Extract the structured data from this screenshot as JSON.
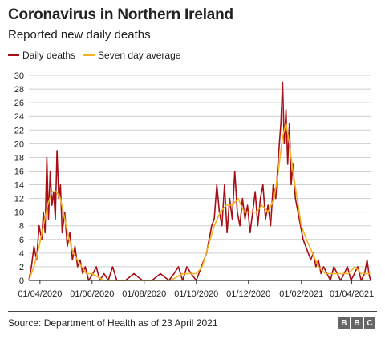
{
  "header": {
    "title": "Coronavirus in Northern Ireland",
    "subtitle": "Reported new daily deaths"
  },
  "footer": {
    "source": "Source: Department of Health as of 23 April 2021",
    "logo_letters": [
      "B",
      "B",
      "C"
    ]
  },
  "colors": {
    "daily": "#a50f15",
    "average": "#f5b324",
    "grid": "#cfcfcf",
    "axis": "#333333"
  },
  "chart_data": {
    "type": "line",
    "title": "Coronavirus in Northern Ireland",
    "subtitle": "Reported new daily deaths",
    "ylim": [
      0,
      30
    ],
    "y_ticks": [
      0,
      2,
      4,
      6,
      8,
      10,
      12,
      14,
      16,
      18,
      20,
      22,
      24,
      26,
      28,
      30
    ],
    "x_range": [
      "2020-03-19",
      "2021-04-23"
    ],
    "x_ticks": [
      {
        "date": "2020-04-01",
        "label": "01/04/2020"
      },
      {
        "date": "2020-06-01",
        "label": "01/06/2020"
      },
      {
        "date": "2020-08-01",
        "label": "01/08/2020"
      },
      {
        "date": "2020-10-01",
        "label": "01/10/2020"
      },
      {
        "date": "2020-12-01",
        "label": "01/12/2020"
      },
      {
        "date": "2021-02-01",
        "label": "01/02/2021"
      },
      {
        "date": "2021-04-01",
        "label": "01/04/2021"
      }
    ],
    "legend": "top-left",
    "grid": true,
    "series": [
      {
        "name": "Daily deaths",
        "key": "daily",
        "points": [
          [
            "2020-03-19",
            0
          ],
          [
            "2020-03-22",
            2
          ],
          [
            "2020-03-25",
            5
          ],
          [
            "2020-03-28",
            3
          ],
          [
            "2020-03-31",
            8
          ],
          [
            "2020-04-03",
            6
          ],
          [
            "2020-04-05",
            10
          ],
          [
            "2020-04-07",
            7
          ],
          [
            "2020-04-09",
            18
          ],
          [
            "2020-04-11",
            9
          ],
          [
            "2020-04-13",
            16
          ],
          [
            "2020-04-15",
            11
          ],
          [
            "2020-04-17",
            13
          ],
          [
            "2020-04-19",
            9
          ],
          [
            "2020-04-21",
            19
          ],
          [
            "2020-04-23",
            12
          ],
          [
            "2020-04-25",
            14
          ],
          [
            "2020-04-27",
            7
          ],
          [
            "2020-04-30",
            10
          ],
          [
            "2020-05-03",
            5
          ],
          [
            "2020-05-06",
            7
          ],
          [
            "2020-05-09",
            3
          ],
          [
            "2020-05-12",
            5
          ],
          [
            "2020-05-15",
            2
          ],
          [
            "2020-05-18",
            3
          ],
          [
            "2020-05-21",
            1
          ],
          [
            "2020-05-24",
            2
          ],
          [
            "2020-05-28",
            0
          ],
          [
            "2020-06-02",
            1
          ],
          [
            "2020-06-06",
            2
          ],
          [
            "2020-06-10",
            0
          ],
          [
            "2020-06-15",
            1
          ],
          [
            "2020-06-20",
            0
          ],
          [
            "2020-06-25",
            2
          ],
          [
            "2020-06-30",
            0
          ],
          [
            "2020-07-10",
            0
          ],
          [
            "2020-07-20",
            1
          ],
          [
            "2020-07-30",
            0
          ],
          [
            "2020-08-10",
            0
          ],
          [
            "2020-08-20",
            1
          ],
          [
            "2020-08-30",
            0
          ],
          [
            "2020-09-05",
            1
          ],
          [
            "2020-09-10",
            2
          ],
          [
            "2020-09-15",
            0
          ],
          [
            "2020-09-20",
            2
          ],
          [
            "2020-09-25",
            1
          ],
          [
            "2020-10-01",
            0
          ],
          [
            "2020-10-04",
            1
          ],
          [
            "2020-10-07",
            2
          ],
          [
            "2020-10-10",
            3
          ],
          [
            "2020-10-13",
            4
          ],
          [
            "2020-10-16",
            6
          ],
          [
            "2020-10-19",
            8
          ],
          [
            "2020-10-22",
            9
          ],
          [
            "2020-10-25",
            14
          ],
          [
            "2020-10-28",
            10
          ],
          [
            "2020-10-31",
            8
          ],
          [
            "2020-11-03",
            14
          ],
          [
            "2020-11-06",
            7
          ],
          [
            "2020-11-09",
            12
          ],
          [
            "2020-11-12",
            9
          ],
          [
            "2020-11-15",
            16
          ],
          [
            "2020-11-18",
            10
          ],
          [
            "2020-11-21",
            8
          ],
          [
            "2020-11-24",
            12
          ],
          [
            "2020-11-27",
            9
          ],
          [
            "2020-11-30",
            11
          ],
          [
            "2020-12-03",
            7
          ],
          [
            "2020-12-06",
            10
          ],
          [
            "2020-12-09",
            13
          ],
          [
            "2020-12-12",
            8
          ],
          [
            "2020-12-15",
            12
          ],
          [
            "2020-12-18",
            14
          ],
          [
            "2020-12-21",
            9
          ],
          [
            "2020-12-24",
            11
          ],
          [
            "2020-12-27",
            8
          ],
          [
            "2020-12-30",
            14
          ],
          [
            "2021-01-02",
            12
          ],
          [
            "2021-01-05",
            18
          ],
          [
            "2021-01-08",
            23
          ],
          [
            "2021-01-10",
            29
          ],
          [
            "2021-01-12",
            20
          ],
          [
            "2021-01-14",
            25
          ],
          [
            "2021-01-16",
            17
          ],
          [
            "2021-01-18",
            23
          ],
          [
            "2021-01-20",
            14
          ],
          [
            "2021-01-22",
            17
          ],
          [
            "2021-01-25",
            12
          ],
          [
            "2021-01-28",
            10
          ],
          [
            "2021-01-31",
            8
          ],
          [
            "2021-02-03",
            6
          ],
          [
            "2021-02-06",
            5
          ],
          [
            "2021-02-09",
            4
          ],
          [
            "2021-02-12",
            3
          ],
          [
            "2021-02-15",
            4
          ],
          [
            "2021-02-18",
            2
          ],
          [
            "2021-02-21",
            3
          ],
          [
            "2021-02-24",
            1
          ],
          [
            "2021-02-27",
            2
          ],
          [
            "2021-03-03",
            1
          ],
          [
            "2021-03-07",
            0
          ],
          [
            "2021-03-11",
            2
          ],
          [
            "2021-03-15",
            1
          ],
          [
            "2021-03-19",
            0
          ],
          [
            "2021-03-23",
            1
          ],
          [
            "2021-03-27",
            2
          ],
          [
            "2021-03-31",
            0
          ],
          [
            "2021-04-04",
            1
          ],
          [
            "2021-04-08",
            2
          ],
          [
            "2021-04-12",
            0
          ],
          [
            "2021-04-16",
            1
          ],
          [
            "2021-04-19",
            3
          ],
          [
            "2021-04-21",
            1
          ],
          [
            "2021-04-23",
            0
          ]
        ]
      },
      {
        "name": "Seven day average",
        "key": "average",
        "points": [
          [
            "2020-03-19",
            0
          ],
          [
            "2020-03-25",
            2
          ],
          [
            "2020-03-31",
            5
          ],
          [
            "2020-04-05",
            8
          ],
          [
            "2020-04-10",
            11
          ],
          [
            "2020-04-15",
            13
          ],
          [
            "2020-04-20",
            13
          ],
          [
            "2020-04-25",
            12
          ],
          [
            "2020-04-30",
            9
          ],
          [
            "2020-05-05",
            6
          ],
          [
            "2020-05-10",
            4
          ],
          [
            "2020-05-15",
            3
          ],
          [
            "2020-05-20",
            2
          ],
          [
            "2020-05-25",
            1
          ],
          [
            "2020-06-01",
            1
          ],
          [
            "2020-06-15",
            0
          ],
          [
            "2020-07-01",
            0
          ],
          [
            "2020-08-01",
            0
          ],
          [
            "2020-09-01",
            0
          ],
          [
            "2020-09-15",
            1
          ],
          [
            "2020-10-01",
            1
          ],
          [
            "2020-10-08",
            2
          ],
          [
            "2020-10-15",
            5
          ],
          [
            "2020-10-22",
            8
          ],
          [
            "2020-10-29",
            10
          ],
          [
            "2020-11-05",
            11
          ],
          [
            "2020-11-12",
            11
          ],
          [
            "2020-11-19",
            12
          ],
          [
            "2020-11-26",
            10
          ],
          [
            "2020-12-03",
            10
          ],
          [
            "2020-12-10",
            10
          ],
          [
            "2020-12-17",
            11
          ],
          [
            "2020-12-24",
            10
          ],
          [
            "2020-12-31",
            12
          ],
          [
            "2021-01-05",
            16
          ],
          [
            "2021-01-10",
            21
          ],
          [
            "2021-01-14",
            23
          ],
          [
            "2021-01-18",
            20
          ],
          [
            "2021-01-22",
            16
          ],
          [
            "2021-01-27",
            12
          ],
          [
            "2021-02-01",
            8
          ],
          [
            "2021-02-07",
            6
          ],
          [
            "2021-02-14",
            4
          ],
          [
            "2021-02-21",
            2
          ],
          [
            "2021-03-01",
            1
          ],
          [
            "2021-03-10",
            1
          ],
          [
            "2021-03-20",
            1
          ],
          [
            "2021-03-28",
            1
          ],
          [
            "2021-04-05",
            2
          ],
          [
            "2021-04-12",
            1
          ],
          [
            "2021-04-23",
            1
          ]
        ]
      }
    ]
  }
}
